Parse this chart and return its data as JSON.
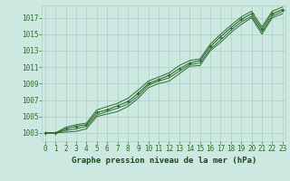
{
  "title": "Graphe pression niveau de la mer (hPa)",
  "xlabel_hours": [
    0,
    1,
    2,
    3,
    4,
    5,
    6,
    7,
    8,
    9,
    10,
    11,
    12,
    13,
    14,
    15,
    16,
    17,
    18,
    19,
    20,
    21,
    22,
    23
  ],
  "line1": [
    1003.0,
    1003.0,
    1003.1,
    1003.2,
    1003.5,
    1005.0,
    1005.3,
    1005.6,
    1006.2,
    1007.2,
    1008.5,
    1009.0,
    1009.3,
    1010.2,
    1011.1,
    1011.2,
    1013.0,
    1014.0,
    1015.2,
    1016.2,
    1017.0,
    1015.0,
    1017.0,
    1017.5
  ],
  "line2": [
    1003.0,
    1003.0,
    1003.3,
    1003.5,
    1003.8,
    1005.2,
    1005.6,
    1006.0,
    1006.5,
    1007.5,
    1008.8,
    1009.3,
    1009.7,
    1010.5,
    1011.3,
    1011.5,
    1013.2,
    1014.3,
    1015.5,
    1016.5,
    1017.2,
    1015.3,
    1017.2,
    1017.8
  ],
  "line3": [
    1003.0,
    1003.0,
    1003.5,
    1003.8,
    1004.0,
    1005.5,
    1005.8,
    1006.3,
    1006.8,
    1007.8,
    1009.0,
    1009.5,
    1010.0,
    1010.8,
    1011.5,
    1011.8,
    1013.5,
    1014.7,
    1015.8,
    1016.8,
    1017.5,
    1015.6,
    1017.5,
    1018.0
  ],
  "line4": [
    1003.0,
    1003.0,
    1003.7,
    1004.0,
    1004.2,
    1005.8,
    1006.2,
    1006.6,
    1007.2,
    1008.2,
    1009.3,
    1009.8,
    1010.3,
    1011.2,
    1011.8,
    1012.0,
    1013.8,
    1015.0,
    1016.1,
    1017.1,
    1017.8,
    1015.9,
    1017.8,
    1018.3
  ],
  "ylim": [
    1002.0,
    1018.5
  ],
  "yticks": [
    1003,
    1005,
    1007,
    1009,
    1011,
    1013,
    1015,
    1017
  ],
  "line_color": "#2d6a2d",
  "marker_color": "#2d6a2d",
  "bg_color": "#cce8e0",
  "grid_color": "#aacfc8",
  "title_color": "#1a4a1a",
  "title_fontsize": 6.5,
  "tick_fontsize": 5.5
}
